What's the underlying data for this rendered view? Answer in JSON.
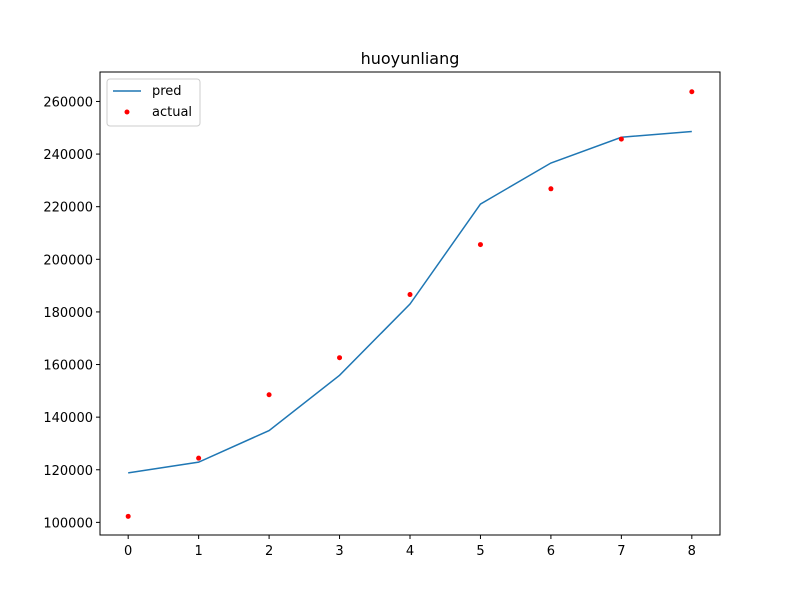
{
  "chart_data": {
    "type": "line",
    "title": "huoyunliang",
    "xlabel": "",
    "ylabel": "",
    "x": [
      0,
      1,
      2,
      3,
      4,
      5,
      6,
      7,
      8
    ],
    "xticks": [
      "0",
      "1",
      "2",
      "3",
      "4",
      "5",
      "6",
      "7",
      "8"
    ],
    "yticks": [
      "100000",
      "120000",
      "140000",
      "160000",
      "180000",
      "200000",
      "220000",
      "240000",
      "260000"
    ],
    "xlim": [
      -0.4,
      8.4
    ],
    "ylim": [
      95200,
      271200
    ],
    "grid": false,
    "legend_position": "top-left",
    "series": [
      {
        "name": "pred",
        "style": "line",
        "color": "#1f77b4",
        "values": [
          118800,
          122900,
          134900,
          155900,
          183000,
          221000,
          236600,
          246400,
          248600
        ]
      },
      {
        "name": "actual",
        "style": "scatter",
        "color": "#ff0000",
        "values": [
          102300,
          124400,
          148500,
          162600,
          186600,
          205600,
          226800,
          245700,
          263700
        ]
      }
    ]
  }
}
